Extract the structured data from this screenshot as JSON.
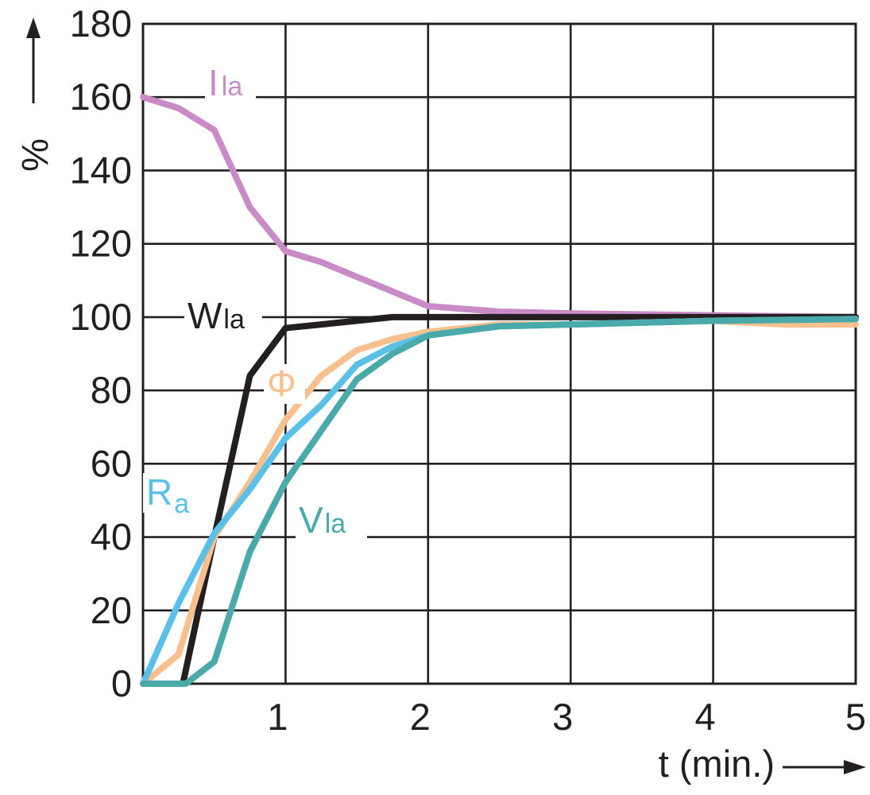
{
  "chart_data": {
    "type": "line",
    "title": "",
    "xlabel": "t (min.)",
    "ylabel": "%",
    "xlim": [
      0,
      5
    ],
    "ylim": [
      0,
      180
    ],
    "x_ticks": [
      "1",
      "2",
      "3",
      "4",
      "5"
    ],
    "y_ticks": [
      "0",
      "20",
      "40",
      "60",
      "80",
      "100",
      "120",
      "140",
      "160",
      "180"
    ],
    "grid": true,
    "series": [
      {
        "key": "ila",
        "name": "I",
        "name_sub": "la",
        "color": "#c98bc6",
        "x": [
          0,
          0.25,
          0.5,
          0.75,
          1.0,
          1.25,
          1.5,
          1.75,
          2.0,
          2.5,
          3.0,
          4.0,
          5.0
        ],
        "y": [
          160,
          157,
          151,
          130,
          118,
          115,
          111,
          107,
          103,
          101.5,
          101,
          100.5,
          100
        ]
      },
      {
        "key": "wla",
        "name": "W",
        "name_sub": "la",
        "color": "#231f20",
        "x": [
          0,
          0.28,
          0.5,
          0.75,
          1.0,
          1.25,
          1.5,
          1.75,
          2.0,
          3.0,
          4.0,
          5.0
        ],
        "y": [
          0,
          0,
          40,
          84,
          97,
          98,
          99,
          100,
          100,
          100,
          100,
          100
        ]
      },
      {
        "key": "phi",
        "name": "Φ",
        "name_sub": "",
        "color": "#f8c08e",
        "x": [
          0,
          0.25,
          0.5,
          0.75,
          1.0,
          1.25,
          1.5,
          1.75,
          2.0,
          2.5,
          3.0,
          3.5,
          4.0,
          4.5,
          5.0
        ],
        "y": [
          0,
          8,
          40,
          55,
          72,
          84,
          91,
          94,
          96,
          98,
          98,
          98.5,
          99,
          98,
          98
        ]
      },
      {
        "key": "ra",
        "name": "R",
        "name_sub": "a",
        "color": "#5bc0e8",
        "x": [
          0,
          0.25,
          0.5,
          0.75,
          1.0,
          1.25,
          1.5,
          1.75,
          2.0,
          2.5,
          3.0,
          4.0,
          5.0
        ],
        "y": [
          0,
          22,
          41,
          53,
          67,
          76,
          87,
          92,
          95,
          97.5,
          98,
          99,
          99.5
        ]
      },
      {
        "key": "vla",
        "name": "V",
        "name_sub": "la",
        "color": "#4aa9a9",
        "x": [
          0,
          0.3,
          0.5,
          0.75,
          1.0,
          1.25,
          1.5,
          1.75,
          2.0,
          2.5,
          3.0,
          4.0,
          5.0
        ],
        "y": [
          0,
          0,
          6,
          36,
          55,
          69,
          83,
          90,
          95,
          97.5,
          98,
          99,
          99.5
        ]
      }
    ]
  }
}
